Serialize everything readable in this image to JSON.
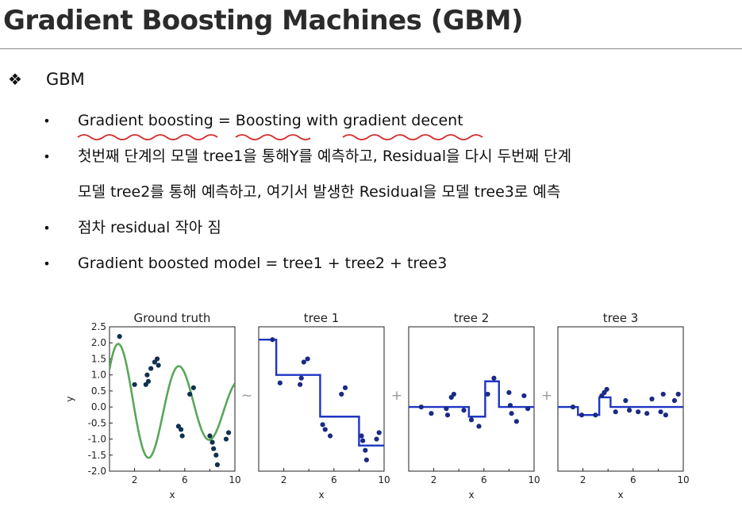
{
  "slide": {
    "title": "Gradient Boosting Machines (GBM)",
    "section": {
      "icon": "diamond-bullet-icon",
      "label": "GBM"
    },
    "bullets": [
      {
        "parts": [
          "Gradient boosting",
          " = ",
          "Boosting",
          " with ",
          "gradient decent"
        ]
      },
      {
        "line1": "첫번째 단계의 모델 tree1을 통해Y를 예측하고, Residual을 다시 두번째 단계",
        "line2": "모델 tree2를 통해 예측하고,  여기서 발생한 Residual을 모델 tree3로 예측"
      },
      {
        "text": "점차 residual 작아 짐"
      },
      {
        "text": "Gradient boosted model = tree1  + tree2 + tree3"
      }
    ],
    "annotation_color": "#d42b2b"
  },
  "chart_data": [
    {
      "type": "scatter",
      "title": "Ground truth",
      "xlabel": "x",
      "ylabel": "y",
      "xlim": [
        0,
        10
      ],
      "ylim": [
        -2.0,
        2.5
      ],
      "xticks": [
        "2",
        "6",
        "10"
      ],
      "yticks": [
        "2.5",
        "2.0",
        "1.5",
        "1.0",
        "0.5",
        "0.0",
        "-0.5",
        "-1.0",
        "-1.5",
        "-2.0"
      ],
      "curve_color": "#5aa65a",
      "point_color": "#12304f",
      "points": [
        [
          0.8,
          2.2
        ],
        [
          2.0,
          0.7
        ],
        [
          2.9,
          0.7
        ],
        [
          3.0,
          1.0
        ],
        [
          3.1,
          0.8
        ],
        [
          3.3,
          1.2
        ],
        [
          3.6,
          1.4
        ],
        [
          3.8,
          1.5
        ],
        [
          3.9,
          1.3
        ],
        [
          5.5,
          -0.6
        ],
        [
          5.7,
          -0.7
        ],
        [
          5.8,
          -0.9
        ],
        [
          6.4,
          0.4
        ],
        [
          6.7,
          0.6
        ],
        [
          8.0,
          -0.9
        ],
        [
          8.2,
          -1.1
        ],
        [
          8.3,
          -1.3
        ],
        [
          8.5,
          -1.5
        ],
        [
          8.6,
          -1.8
        ],
        [
          9.3,
          -1.0
        ],
        [
          9.5,
          -0.8
        ]
      ]
    },
    {
      "type": "scatter",
      "title": "tree 1",
      "xlabel": "x",
      "xlim": [
        0,
        10
      ],
      "ylim": [
        -2.0,
        2.5
      ],
      "xticks": [
        "2",
        "6",
        "10"
      ],
      "step_color": "#1d35c4",
      "point_color": "#1a2a86",
      "step": [
        [
          0,
          2.1
        ],
        [
          1.4,
          2.1
        ],
        [
          1.4,
          1.0
        ],
        [
          4.9,
          1.0
        ],
        [
          4.9,
          -0.3
        ],
        [
          8.0,
          -0.3
        ],
        [
          8.0,
          -1.2
        ],
        [
          10,
          -1.2
        ]
      ],
      "points": [
        [
          1.1,
          2.1
        ],
        [
          1.7,
          0.75
        ],
        [
          3.3,
          0.7
        ],
        [
          3.4,
          0.9
        ],
        [
          3.6,
          1.4
        ],
        [
          3.9,
          1.5
        ],
        [
          5.1,
          -0.55
        ],
        [
          5.3,
          -0.7
        ],
        [
          5.7,
          -0.9
        ],
        [
          6.6,
          0.4
        ],
        [
          6.9,
          0.6
        ],
        [
          8.2,
          -0.9
        ],
        [
          8.3,
          -1.05
        ],
        [
          8.5,
          -1.35
        ],
        [
          8.6,
          -1.65
        ],
        [
          9.4,
          -1.0
        ],
        [
          9.6,
          -0.8
        ]
      ]
    },
    {
      "type": "scatter",
      "title": "tree 2",
      "xlabel": "x",
      "xlim": [
        0,
        10
      ],
      "ylim": [
        -2.0,
        2.5
      ],
      "xticks": [
        "2",
        "6",
        "10"
      ],
      "step_color": "#1d35c4",
      "point_color": "#1a2a86",
      "step": [
        [
          0,
          0.0
        ],
        [
          4.8,
          0.0
        ],
        [
          4.8,
          -0.3
        ],
        [
          6.1,
          -0.3
        ],
        [
          6.1,
          0.8
        ],
        [
          7.2,
          0.8
        ],
        [
          7.2,
          0.0
        ],
        [
          10,
          0.0
        ]
      ],
      "points": [
        [
          1.0,
          0.0
        ],
        [
          1.8,
          -0.2
        ],
        [
          3.0,
          -0.05
        ],
        [
          3.1,
          -0.25
        ],
        [
          3.4,
          0.3
        ],
        [
          3.6,
          0.4
        ],
        [
          4.4,
          -0.1
        ],
        [
          5.0,
          -0.4
        ],
        [
          5.6,
          -0.6
        ],
        [
          6.3,
          0.4
        ],
        [
          6.8,
          0.9
        ],
        [
          8.0,
          0.45
        ],
        [
          8.1,
          0.05
        ],
        [
          8.2,
          -0.2
        ],
        [
          8.6,
          -0.45
        ],
        [
          9.2,
          0.35
        ],
        [
          9.5,
          -0.05
        ]
      ]
    },
    {
      "type": "scatter",
      "title": "tree 3",
      "xlabel": "x",
      "xlim": [
        0,
        10
      ],
      "ylim": [
        -2.0,
        2.5
      ],
      "xticks": [
        "2",
        "6",
        "10"
      ],
      "step_color": "#1d35c4",
      "point_color": "#1a2a86",
      "step": [
        [
          0,
          0.0
        ],
        [
          1.6,
          0.0
        ],
        [
          1.6,
          -0.25
        ],
        [
          3.3,
          -0.25
        ],
        [
          3.3,
          0.3
        ],
        [
          4.2,
          0.3
        ],
        [
          4.2,
          0.0
        ],
        [
          10,
          0.0
        ]
      ],
      "points": [
        [
          1.2,
          0.0
        ],
        [
          1.9,
          -0.25
        ],
        [
          3.0,
          -0.25
        ],
        [
          3.5,
          0.35
        ],
        [
          3.7,
          0.45
        ],
        [
          3.9,
          0.55
        ],
        [
          4.6,
          -0.15
        ],
        [
          5.4,
          0.2
        ],
        [
          5.7,
          -0.1
        ],
        [
          6.4,
          -0.15
        ],
        [
          7.1,
          -0.2
        ],
        [
          7.5,
          0.25
        ],
        [
          8.2,
          -0.15
        ],
        [
          8.4,
          0.4
        ],
        [
          8.6,
          -0.25
        ],
        [
          9.3,
          0.2
        ],
        [
          9.6,
          0.4
        ]
      ]
    }
  ],
  "figure_operators": [
    "~",
    "+",
    "+"
  ]
}
